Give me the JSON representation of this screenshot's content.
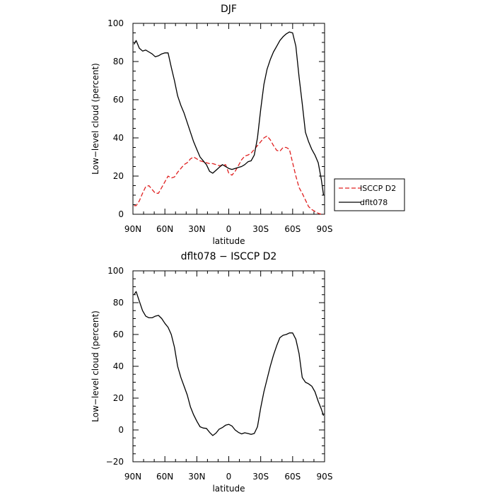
{
  "chart_data": [
    {
      "type": "line",
      "title": "DJF",
      "xlabel": "latitude",
      "ylabel": "Low−level cloud (percent)",
      "xlim": [
        90,
        -90
      ],
      "ylim": [
        0,
        100
      ],
      "x_ticks": [
        90,
        60,
        30,
        0,
        -30,
        -60,
        -90
      ],
      "x_tick_labels": [
        "90N",
        "60N",
        "30N",
        "0",
        "30S",
        "60S",
        "90S"
      ],
      "y_ticks": [
        0,
        20,
        40,
        60,
        80,
        100
      ],
      "y_tick_labels": [
        "0",
        "20",
        "40",
        "60",
        "80",
        "100"
      ],
      "legend": "right",
      "series": [
        {
          "name": "ISCCP D2",
          "color": "#e02020",
          "dash": "dashed",
          "x": [
            89,
            87,
            84,
            81,
            78,
            75,
            72,
            69,
            66,
            63,
            60,
            57,
            54,
            51,
            48,
            45,
            42,
            39,
            36,
            33,
            30,
            27,
            24,
            21,
            18,
            15,
            12,
            9,
            6,
            3,
            0,
            -3,
            -6,
            -9,
            -12,
            -15,
            -18,
            -21,
            -24,
            -27,
            -30,
            -33,
            -36,
            -39,
            -42,
            -45,
            -48,
            -51,
            -54,
            -57,
            -60,
            -63,
            -66,
            -69,
            -72,
            -75,
            -78,
            -81,
            -84,
            -87,
            -89
          ],
          "y": [
            4.5,
            4.5,
            7,
            11,
            14.5,
            15,
            13,
            11,
            11,
            14,
            17,
            20,
            19,
            19.5,
            22,
            24,
            26,
            27,
            29,
            30,
            29,
            28,
            27.5,
            27,
            26.5,
            26.5,
            26,
            25.5,
            25.5,
            26,
            21.5,
            20.5,
            22.5,
            25.5,
            28.5,
            30.5,
            31,
            32,
            34,
            36,
            38,
            40,
            41,
            39,
            36,
            33.5,
            33,
            35,
            35,
            34,
            27,
            20,
            14,
            11,
            7.5,
            4,
            2.5,
            1.5,
            0.5,
            0,
            0
          ]
        },
        {
          "name": "dflt078",
          "color": "#000000",
          "dash": "solid",
          "x": [
            89,
            87,
            84,
            81,
            78,
            75,
            72,
            69,
            66,
            63,
            60,
            57,
            54,
            51,
            48,
            45,
            42,
            39,
            36,
            33,
            30,
            27,
            24,
            21,
            18,
            15,
            12,
            9,
            6,
            3,
            0,
            -3,
            -6,
            -9,
            -12,
            -15,
            -18,
            -21,
            -24,
            -27,
            -30,
            -33,
            -36,
            -39,
            -42,
            -45,
            -48,
            -51,
            -54,
            -57,
            -60,
            -63,
            -66,
            -69,
            -72,
            -75,
            -78,
            -81,
            -84,
            -87,
            -89
          ],
          "y": [
            89,
            91,
            87,
            85.5,
            86,
            85,
            84,
            82.5,
            83,
            84,
            84.5,
            84.5,
            77,
            70,
            62,
            57,
            53,
            48,
            43,
            38,
            34,
            30,
            28,
            26,
            22.5,
            21.5,
            23,
            24.5,
            26,
            25,
            24,
            23.5,
            24,
            24.5,
            25,
            26,
            27.5,
            28,
            31,
            40,
            55,
            68,
            76,
            81,
            85,
            88,
            91,
            93,
            94.5,
            95.5,
            95,
            88,
            72,
            58,
            43,
            38,
            34,
            31,
            27,
            18,
            10
          ]
        }
      ]
    },
    {
      "type": "line",
      "title": "dflt078 − ISCCP D2",
      "xlabel": "latitude",
      "ylabel": "Low−level cloud (percent)",
      "xlim": [
        90,
        -90
      ],
      "ylim": [
        -20,
        100
      ],
      "x_ticks": [
        90,
        60,
        30,
        0,
        -30,
        -60,
        -90
      ],
      "x_tick_labels": [
        "90N",
        "60N",
        "30N",
        "0",
        "30S",
        "60S",
        "90S"
      ],
      "y_ticks": [
        -20,
        0,
        20,
        40,
        60,
        80,
        100
      ],
      "y_tick_labels": [
        "−20",
        "0",
        "20",
        "40",
        "60",
        "80",
        "100"
      ],
      "series": [
        {
          "name": "",
          "color": "#000000",
          "dash": "solid",
          "x": [
            89,
            87,
            84,
            81,
            78,
            75,
            72,
            69,
            66,
            63,
            60,
            57,
            54,
            51,
            48,
            45,
            42,
            39,
            36,
            33,
            30,
            27,
            24,
            21,
            18,
            15,
            12,
            9,
            6,
            3,
            0,
            -3,
            -6,
            -9,
            -12,
            -15,
            -18,
            -21,
            -24,
            -27,
            -30,
            -33,
            -36,
            -39,
            -42,
            -45,
            -48,
            -51,
            -54,
            -57,
            -60,
            -63,
            -66,
            -69,
            -72,
            -75,
            -78,
            -81,
            -84,
            -87,
            -89
          ],
          "y": [
            85,
            87,
            81,
            75,
            71.5,
            70.5,
            70.5,
            71.5,
            72,
            70,
            67,
            64.5,
            60,
            52,
            40,
            33,
            27.5,
            22,
            14.5,
            9.5,
            5.5,
            2,
            1.2,
            1,
            -1.5,
            -3.5,
            -2,
            0.5,
            1.5,
            3,
            3.5,
            2.5,
            0,
            -1.5,
            -2.5,
            -1.8,
            -2.2,
            -2.8,
            -2.2,
            2,
            14,
            24,
            32,
            40,
            47,
            53,
            58,
            59.5,
            60,
            61,
            61,
            57,
            48,
            33,
            30,
            29,
            27.5,
            24,
            18,
            13,
            9
          ]
        }
      ]
    }
  ]
}
